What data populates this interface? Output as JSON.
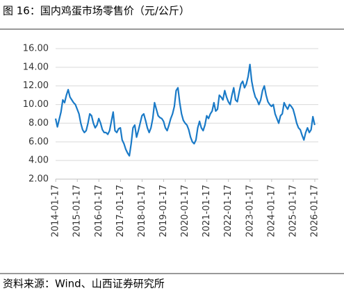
{
  "chart_data": {
    "type": "line",
    "title": "图 16：国内鸡蛋市场零售价（元/公斤）",
    "source": "资料来源：Wind、山西证券研究所",
    "x": [
      "2014-01",
      "2014-02",
      "2014-03",
      "2014-04",
      "2014-05",
      "2014-06",
      "2014-07",
      "2014-08",
      "2014-09",
      "2014-10",
      "2014-11",
      "2014-12",
      "2015-01",
      "2015-02",
      "2015-03",
      "2015-04",
      "2015-05",
      "2015-06",
      "2015-07",
      "2015-08",
      "2015-09",
      "2015-10",
      "2015-11",
      "2015-12",
      "2016-01",
      "2016-02",
      "2016-03",
      "2016-04",
      "2016-05",
      "2016-06",
      "2016-07",
      "2016-08",
      "2016-09",
      "2016-10",
      "2016-11",
      "2016-12",
      "2017-01",
      "2017-02",
      "2017-03",
      "2017-04",
      "2017-05",
      "2017-06",
      "2017-07",
      "2017-08",
      "2017-09",
      "2017-10",
      "2017-11",
      "2017-12",
      "2018-01",
      "2018-02",
      "2018-03",
      "2018-04",
      "2018-05",
      "2018-06",
      "2018-07",
      "2018-08",
      "2018-09",
      "2018-10",
      "2018-11",
      "2018-12",
      "2019-01",
      "2019-02",
      "2019-03",
      "2019-04",
      "2019-05",
      "2019-06",
      "2019-07",
      "2019-08",
      "2019-09",
      "2019-10",
      "2019-11",
      "2019-12",
      "2020-01",
      "2020-02",
      "2020-03",
      "2020-04",
      "2020-05",
      "2020-06",
      "2020-07",
      "2020-08",
      "2020-09",
      "2020-10",
      "2020-11",
      "2020-12",
      "2021-01",
      "2021-02",
      "2021-03",
      "2021-04",
      "2021-05",
      "2021-06",
      "2021-07",
      "2021-08",
      "2021-09",
      "2021-10",
      "2021-11",
      "2021-12",
      "2022-01",
      "2022-02",
      "2022-03",
      "2022-04",
      "2022-05",
      "2022-06",
      "2022-07",
      "2022-08",
      "2022-09",
      "2022-10",
      "2022-11",
      "2022-12",
      "2023-01",
      "2023-02",
      "2023-03",
      "2023-04",
      "2023-05",
      "2023-06",
      "2023-07",
      "2023-08",
      "2023-09",
      "2023-10",
      "2023-11",
      "2023-12",
      "2024-01",
      "2024-02",
      "2024-03",
      "2024-04",
      "2024-05",
      "2024-06",
      "2024-07",
      "2024-08",
      "2024-09",
      "2024-10",
      "2024-11",
      "2024-12",
      "2025-01",
      "2025-02",
      "2025-03",
      "2025-04",
      "2025-05",
      "2025-06",
      "2025-07",
      "2025-08",
      "2025-09",
      "2025-10",
      "2025-11",
      "2025-12",
      "2026-01"
    ],
    "series": [
      {
        "color": "#1a7ac7",
        "values": [
          8.5,
          7.6,
          8.4,
          9.2,
          10.5,
          10.2,
          11.0,
          11.6,
          10.8,
          10.5,
          10.2,
          10.0,
          9.5,
          9.0,
          8.0,
          7.3,
          7.0,
          7.2,
          8.0,
          9.0,
          8.8,
          8.0,
          7.5,
          7.8,
          8.5,
          8.0,
          7.3,
          7.0,
          7.0,
          6.8,
          7.2,
          8.2,
          9.2,
          7.2,
          7.0,
          7.4,
          7.5,
          6.2,
          5.8,
          5.2,
          4.8,
          4.5,
          5.8,
          7.5,
          7.8,
          6.5,
          7.2,
          8.0,
          8.8,
          9.0,
          8.3,
          7.5,
          7.0,
          7.5,
          8.5,
          10.2,
          9.5,
          8.8,
          8.6,
          8.5,
          8.2,
          7.5,
          7.2,
          7.8,
          8.5,
          9.0,
          9.8,
          11.5,
          11.8,
          10.2,
          9.0,
          8.3,
          8.0,
          7.8,
          7.3,
          6.5,
          6.0,
          5.8,
          6.2,
          7.5,
          8.2,
          7.5,
          7.2,
          7.8,
          8.8,
          8.5,
          9.0,
          9.3,
          10.2,
          9.3,
          9.5,
          11.0,
          10.8,
          10.5,
          11.5,
          10.8,
          10.3,
          10.0,
          11.0,
          11.8,
          10.5,
          10.3,
          11.3,
          12.2,
          12.5,
          11.8,
          12.2,
          13.0,
          14.3,
          12.5,
          11.5,
          10.8,
          10.5,
          10.0,
          10.5,
          11.5,
          12.0,
          11.0,
          10.3,
          10.0,
          9.8,
          10.0,
          9.0,
          8.5,
          8.0,
          8.8,
          9.0,
          10.2,
          9.8,
          9.5,
          10.0,
          9.8,
          9.5,
          8.8,
          8.0,
          7.5,
          7.3,
          6.7,
          6.2,
          7.0,
          7.5,
          7.0,
          7.3,
          8.7,
          7.8
        ]
      }
    ],
    "xlim": [
      "2014-01",
      "2026-03"
    ],
    "xticks": [
      "2014-01-17",
      "2015-01-17",
      "2016-01-17",
      "2017-01-17",
      "2018-01-17",
      "2019-01-17",
      "2020-01-17",
      "2021-01-17",
      "2022-01-17",
      "2023-01-17",
      "2024-01-17",
      "2025-01-17",
      "2026-01-17"
    ],
    "ylim": [
      2,
      16
    ],
    "yticks": [
      {
        "value": 2,
        "label": "2.00"
      },
      {
        "value": 4,
        "label": "4.00"
      },
      {
        "value": 6,
        "label": "6.00"
      },
      {
        "value": 8,
        "label": "8.00"
      },
      {
        "value": 10,
        "label": "10.00"
      },
      {
        "value": 12,
        "label": "12.00"
      },
      {
        "value": 14,
        "label": "14.00"
      },
      {
        "value": 16,
        "label": "16.00"
      }
    ],
    "grid": true
  }
}
